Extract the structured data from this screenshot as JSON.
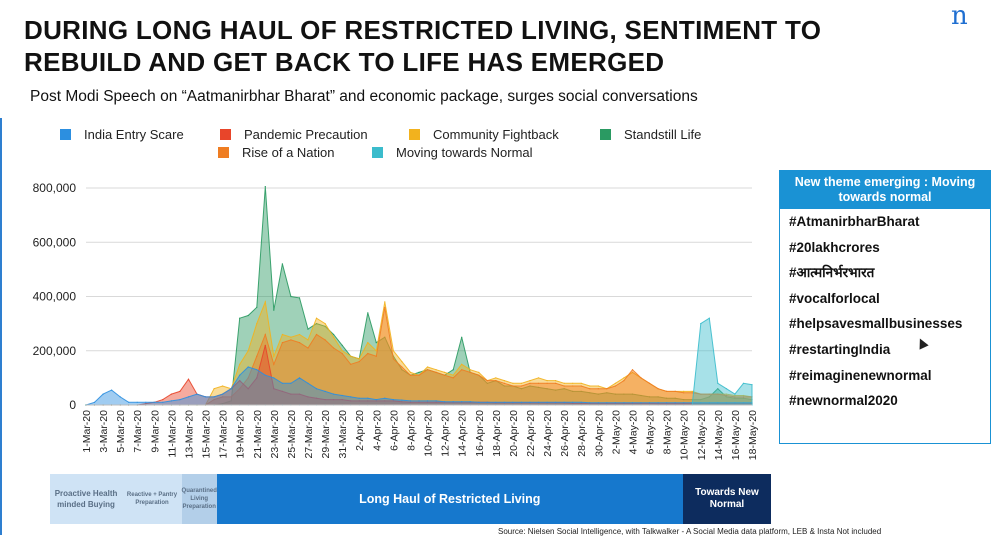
{
  "title": "DURING LONG HAUL OF RESTRICTED LIVING, SENTIMENT TO REBUILD AND GET BACK TO LIFE HAS EMERGED",
  "subtitle": "Post Modi Speech on “Aatmanirbhar Bharat” and economic package, surges social conversations",
  "logo": {
    "glyph": "n",
    "icon": "nielsen-logo-icon",
    "color": "#1f6fd1"
  },
  "theme_panel": {
    "header": "New theme emerging : Moving towards normal",
    "hashtags": [
      "#AtmanirbharBharat",
      "#20lakhcrores",
      "#आत्मनिर्भरभारत",
      "#vocalforlocal",
      "#helpsavesmallbusinesses",
      "#restartingIndia",
      "#reimaginenewnormal",
      "#newnormal2020"
    ]
  },
  "phases": [
    {
      "label": "Proactive Health minded Buying",
      "bg": "#cfe3f5",
      "fg": "#5a6f86",
      "share": 0.1
    },
    {
      "label": "Reactive + Pantry Preparation",
      "bg": "#cfe3f5",
      "fg": "#5a6f86",
      "share": 0.083
    },
    {
      "label": "Quarantined Living Preparation",
      "bg": "#b3cfe9",
      "fg": "#5a6f86",
      "share": 0.048
    },
    {
      "label": "Long Haul of Restricted Living",
      "bg": "#1678cd",
      "fg": "#ffffff",
      "share": 0.647
    },
    {
      "label": "Towards New Normal",
      "bg": "#0d2c5e",
      "fg": "#ffffff",
      "share": 0.122
    }
  ],
  "source": "Source: Nielsen Social Intelligence, with Talkwalker - A Social Media data platform, LEB & Insta Not included",
  "chart_data": {
    "type": "area",
    "ylim": [
      0,
      800000
    ],
    "yticks": [
      0,
      200000,
      400000,
      600000,
      800000
    ],
    "ytick_labels": [
      "0",
      "200,000",
      "400,000",
      "600,000",
      "800,000"
    ],
    "grid": true,
    "legend_position": "top",
    "x": [
      "1-Mar-20",
      "2-Mar-20",
      "3-Mar-20",
      "4-Mar-20",
      "5-Mar-20",
      "6-Mar-20",
      "7-Mar-20",
      "8-Mar-20",
      "9-Mar-20",
      "10-Mar-20",
      "11-Mar-20",
      "12-Mar-20",
      "13-Mar-20",
      "14-Mar-20",
      "15-Mar-20",
      "16-Mar-20",
      "17-Mar-20",
      "18-Mar-20",
      "19-Mar-20",
      "20-Mar-20",
      "21-Mar-20",
      "22-Mar-20",
      "23-Mar-20",
      "24-Mar-20",
      "25-Mar-20",
      "26-Mar-20",
      "27-Mar-20",
      "28-Mar-20",
      "29-Mar-20",
      "30-Mar-20",
      "31-Mar-20",
      "1-Apr-20",
      "2-Apr-20",
      "3-Apr-20",
      "4-Apr-20",
      "5-Apr-20",
      "6-Apr-20",
      "7-Apr-20",
      "8-Apr-20",
      "9-Apr-20",
      "10-Apr-20",
      "11-Apr-20",
      "12-Apr-20",
      "13-Apr-20",
      "14-Apr-20",
      "15-Apr-20",
      "16-Apr-20",
      "17-Apr-20",
      "18-Apr-20",
      "19-Apr-20",
      "20-Apr-20",
      "21-Apr-20",
      "22-Apr-20",
      "23-Apr-20",
      "24-Apr-20",
      "25-Apr-20",
      "26-Apr-20",
      "27-Apr-20",
      "28-Apr-20",
      "29-Apr-20",
      "30-Apr-20",
      "1-May-20",
      "2-May-20",
      "3-May-20",
      "4-May-20",
      "5-May-20",
      "6-May-20",
      "7-May-20",
      "8-May-20",
      "9-May-20",
      "10-May-20",
      "11-May-20",
      "12-May-20",
      "13-May-20",
      "14-May-20",
      "15-May-20",
      "16-May-20",
      "17-May-20",
      "18-May-20"
    ],
    "xtick_labels": [
      "1-Mar-20",
      "3-Mar-20",
      "5-Mar-20",
      "7-Mar-20",
      "9-Mar-20",
      "11-Mar-20",
      "13-Mar-20",
      "15-Mar-20",
      "17-Mar-20",
      "19-Mar-20",
      "21-Mar-20",
      "23-Mar-20",
      "25-Mar-20",
      "27-Mar-20",
      "29-Mar-20",
      "31-Mar-20",
      "2-Apr-20",
      "4-Apr-20",
      "6-Apr-20",
      "8-Apr-20",
      "10-Apr-20",
      "12-Apr-20",
      "14-Apr-20",
      "16-Apr-20",
      "18-Apr-20",
      "20-Apr-20",
      "22-Apr-20",
      "24-Apr-20",
      "26-Apr-20",
      "28-Apr-20",
      "30-Apr-20",
      "2-May-20",
      "4-May-20",
      "6-May-20",
      "8-May-20",
      "10-May-20",
      "12-May-20",
      "14-May-20",
      "16-May-20",
      "18-May-20"
    ],
    "series": [
      {
        "name": "Standstill Life",
        "color": "#2a9a62",
        "values": [
          0,
          0,
          0,
          0,
          0,
          0,
          0,
          0,
          0,
          0,
          0,
          0,
          0,
          0,
          0,
          0,
          5000,
          15000,
          320000,
          330000,
          360000,
          805000,
          350000,
          520000,
          400000,
          395000,
          280000,
          300000,
          290000,
          260000,
          220000,
          180000,
          170000,
          340000,
          230000,
          250000,
          180000,
          130000,
          110000,
          120000,
          130000,
          120000,
          110000,
          130000,
          250000,
          120000,
          110000,
          80000,
          90000,
          70000,
          70000,
          60000,
          70000,
          65000,
          60000,
          55000,
          60000,
          50000,
          50000,
          45000,
          40000,
          45000,
          40000,
          40000,
          40000,
          35000,
          30000,
          30000,
          25000,
          25000,
          20000,
          20000,
          20000,
          30000,
          60000,
          30000,
          25000,
          25000,
          20000
        ]
      },
      {
        "name": "Community Fightback",
        "color": "#f2b21e",
        "values": [
          0,
          0,
          0,
          0,
          0,
          0,
          0,
          0,
          0,
          0,
          0,
          0,
          0,
          0,
          0,
          60000,
          70000,
          60000,
          150000,
          200000,
          300000,
          380000,
          180000,
          260000,
          250000,
          260000,
          240000,
          320000,
          300000,
          250000,
          200000,
          180000,
          170000,
          230000,
          200000,
          380000,
          200000,
          160000,
          120000,
          110000,
          140000,
          130000,
          120000,
          110000,
          150000,
          130000,
          120000,
          90000,
          100000,
          90000,
          80000,
          80000,
          90000,
          100000,
          90000,
          90000,
          80000,
          80000,
          80000,
          70000,
          70000,
          60000,
          80000,
          100000,
          120000,
          100000,
          80000,
          60000,
          50000,
          50000,
          50000,
          50000,
          40000,
          40000,
          40000,
          40000,
          35000,
          35000,
          30000
        ]
      },
      {
        "name": "Rise of a Nation",
        "color": "#ef7d22",
        "values": [
          0,
          0,
          0,
          0,
          0,
          0,
          0,
          0,
          0,
          0,
          0,
          0,
          0,
          0,
          0,
          20000,
          30000,
          30000,
          60000,
          100000,
          180000,
          260000,
          150000,
          230000,
          240000,
          230000,
          210000,
          260000,
          240000,
          210000,
          190000,
          150000,
          160000,
          190000,
          180000,
          360000,
          170000,
          140000,
          110000,
          110000,
          130000,
          120000,
          110000,
          100000,
          130000,
          120000,
          110000,
          90000,
          90000,
          80000,
          70000,
          70000,
          80000,
          80000,
          80000,
          80000,
          70000,
          70000,
          70000,
          60000,
          60000,
          60000,
          70000,
          90000,
          130000,
          100000,
          80000,
          60000,
          50000,
          50000,
          45000,
          45000,
          40000,
          40000,
          40000,
          35000,
          30000,
          30000,
          30000
        ]
      },
      {
        "name": "Pandemic Precaution",
        "color": "#e8452a",
        "values": [
          0,
          0,
          0,
          0,
          0,
          0,
          0,
          5000,
          10000,
          20000,
          40000,
          50000,
          95000,
          40000,
          30000,
          30000,
          40000,
          60000,
          90000,
          60000,
          100000,
          220000,
          60000,
          50000,
          40000,
          40000,
          30000,
          25000,
          20000,
          20000,
          20000,
          15000,
          15000,
          15000,
          15000,
          15000,
          15000,
          12000,
          10000,
          10000,
          10000,
          10000,
          10000,
          10000,
          10000,
          10000,
          10000,
          10000,
          8000,
          8000,
          8000,
          8000,
          8000,
          8000,
          8000,
          8000,
          8000,
          6000,
          6000,
          6000,
          6000,
          6000,
          6000,
          6000,
          6000,
          6000,
          6000,
          5000,
          5000,
          5000,
          5000,
          5000,
          5000,
          5000,
          5000,
          5000,
          5000,
          5000,
          5000
        ]
      },
      {
        "name": "India Entry Scare",
        "color": "#2c8fe0",
        "values": [
          0,
          10000,
          40000,
          55000,
          30000,
          10000,
          10000,
          10000,
          10000,
          10000,
          15000,
          20000,
          30000,
          40000,
          30000,
          30000,
          40000,
          60000,
          110000,
          140000,
          130000,
          110000,
          100000,
          80000,
          80000,
          100000,
          80000,
          60000,
          50000,
          40000,
          35000,
          30000,
          25000,
          25000,
          20000,
          25000,
          20000,
          18000,
          15000,
          15000,
          15000,
          15000,
          12000,
          12000,
          12000,
          12000,
          10000,
          10000,
          10000,
          10000,
          10000,
          10000,
          10000,
          10000,
          10000,
          10000,
          10000,
          10000,
          10000,
          8000,
          8000,
          8000,
          8000,
          8000,
          8000,
          8000,
          8000,
          8000,
          8000,
          8000,
          8000,
          8000,
          8000,
          8000,
          8000,
          8000,
          8000,
          8000,
          8000
        ]
      },
      {
        "name": "Moving towards Normal",
        "color": "#3bbccc",
        "values": [
          0,
          0,
          0,
          0,
          0,
          0,
          0,
          0,
          0,
          0,
          0,
          0,
          0,
          0,
          0,
          0,
          0,
          0,
          0,
          0,
          0,
          0,
          0,
          0,
          0,
          0,
          0,
          0,
          0,
          0,
          0,
          0,
          0,
          0,
          0,
          0,
          0,
          0,
          0,
          0,
          0,
          0,
          0,
          0,
          0,
          0,
          0,
          0,
          0,
          0,
          0,
          0,
          0,
          0,
          0,
          0,
          0,
          0,
          0,
          0,
          0,
          0,
          0,
          0,
          0,
          0,
          0,
          0,
          0,
          0,
          0,
          0,
          300000,
          320000,
          80000,
          60000,
          40000,
          80000,
          75000
        ]
      }
    ],
    "legend": [
      {
        "name": "India Entry Scare",
        "color": "#2c8fe0"
      },
      {
        "name": "Pandemic Precaution",
        "color": "#e8452a"
      },
      {
        "name": "Community Fightback",
        "color": "#f2b21e"
      },
      {
        "name": "Standstill Life",
        "color": "#2a9a62"
      },
      {
        "name": "Rise of a Nation",
        "color": "#ef7d22"
      },
      {
        "name": "Moving towards Normal",
        "color": "#3bbccc"
      }
    ]
  }
}
